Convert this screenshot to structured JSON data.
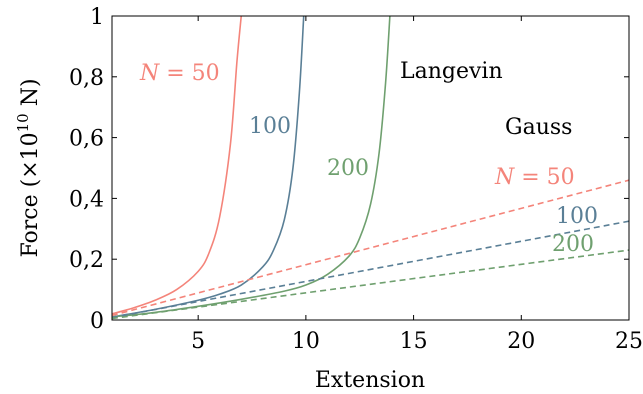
{
  "chart_data": {
    "type": "line",
    "xlabel": "Extension",
    "ylabel": "Force (×10",
    "ylabel_exp": "10",
    "ylabel_unit": " N)",
    "xlim": [
      1,
      25
    ],
    "ylim": [
      0,
      1
    ],
    "xticks": [
      5,
      10,
      15,
      20,
      25
    ],
    "xtick_labels": [
      "5",
      "10",
      "15",
      "20",
      "25"
    ],
    "yticks": [
      0,
      0.2,
      0.4,
      0.6,
      0.8,
      1
    ],
    "ytick_labels": [
      "0",
      "0,2",
      "0,4",
      "0,6",
      "0,8",
      "1"
    ],
    "grid": false,
    "series": [
      {
        "model": "Langevin",
        "N": "50",
        "style": "solid",
        "color": "#f4847a",
        "x": [
          1,
          2,
          3,
          4,
          5,
          5.5,
          6,
          6.5,
          6.8,
          7.0
        ],
        "y": [
          0.02,
          0.04,
          0.065,
          0.1,
          0.16,
          0.22,
          0.34,
          0.58,
          0.85,
          1.0
        ]
      },
      {
        "model": "Langevin",
        "N": "100",
        "style": "solid",
        "color": "#5a7f96",
        "x": [
          1,
          3,
          5,
          6,
          7,
          8,
          8.5,
          9,
          9.4,
          9.7,
          9.9
        ],
        "y": [
          0.01,
          0.035,
          0.065,
          0.085,
          0.115,
          0.175,
          0.23,
          0.33,
          0.5,
          0.75,
          1.0
        ]
      },
      {
        "model": "Langevin",
        "N": "200",
        "style": "solid",
        "color": "#6fa06f",
        "x": [
          1,
          3,
          5,
          7,
          9,
          10,
          11,
          12,
          12.5,
          13,
          13.4,
          13.7,
          13.9
        ],
        "y": [
          0.01,
          0.025,
          0.045,
          0.068,
          0.095,
          0.115,
          0.15,
          0.21,
          0.27,
          0.38,
          0.55,
          0.78,
          1.0
        ]
      },
      {
        "model": "Gauss",
        "N": "50",
        "style": "dashed",
        "color": "#f4847a",
        "x": [
          1,
          25
        ],
        "y": [
          0.015,
          0.46
        ]
      },
      {
        "model": "Gauss",
        "N": "100",
        "style": "dashed",
        "color": "#5a7f96",
        "x": [
          1,
          25
        ],
        "y": [
          0.008,
          0.325
        ]
      },
      {
        "model": "Gauss",
        "N": "200",
        "style": "dashed",
        "color": "#6fa06f",
        "x": [
          1,
          25
        ],
        "y": [
          0.005,
          0.23
        ]
      }
    ],
    "annotations": [
      {
        "id": "lang-n50",
        "var": "N",
        "eq": " = 50",
        "color": "#f4847a"
      },
      {
        "id": "lang-100",
        "text": "100",
        "color": "#5a7f96"
      },
      {
        "id": "lang-200",
        "text": "200",
        "color": "#6fa06f"
      },
      {
        "id": "langevin",
        "text": "Langevin",
        "color": "#000000"
      },
      {
        "id": "gauss",
        "text": "Gauss",
        "color": "#000000"
      },
      {
        "id": "gauss-n50",
        "var": "N",
        "eq": " = 50",
        "color": "#f4847a"
      },
      {
        "id": "gauss-100",
        "text": "100",
        "color": "#5a7f96"
      },
      {
        "id": "gauss-200",
        "text": "200",
        "color": "#6fa06f"
      }
    ]
  }
}
